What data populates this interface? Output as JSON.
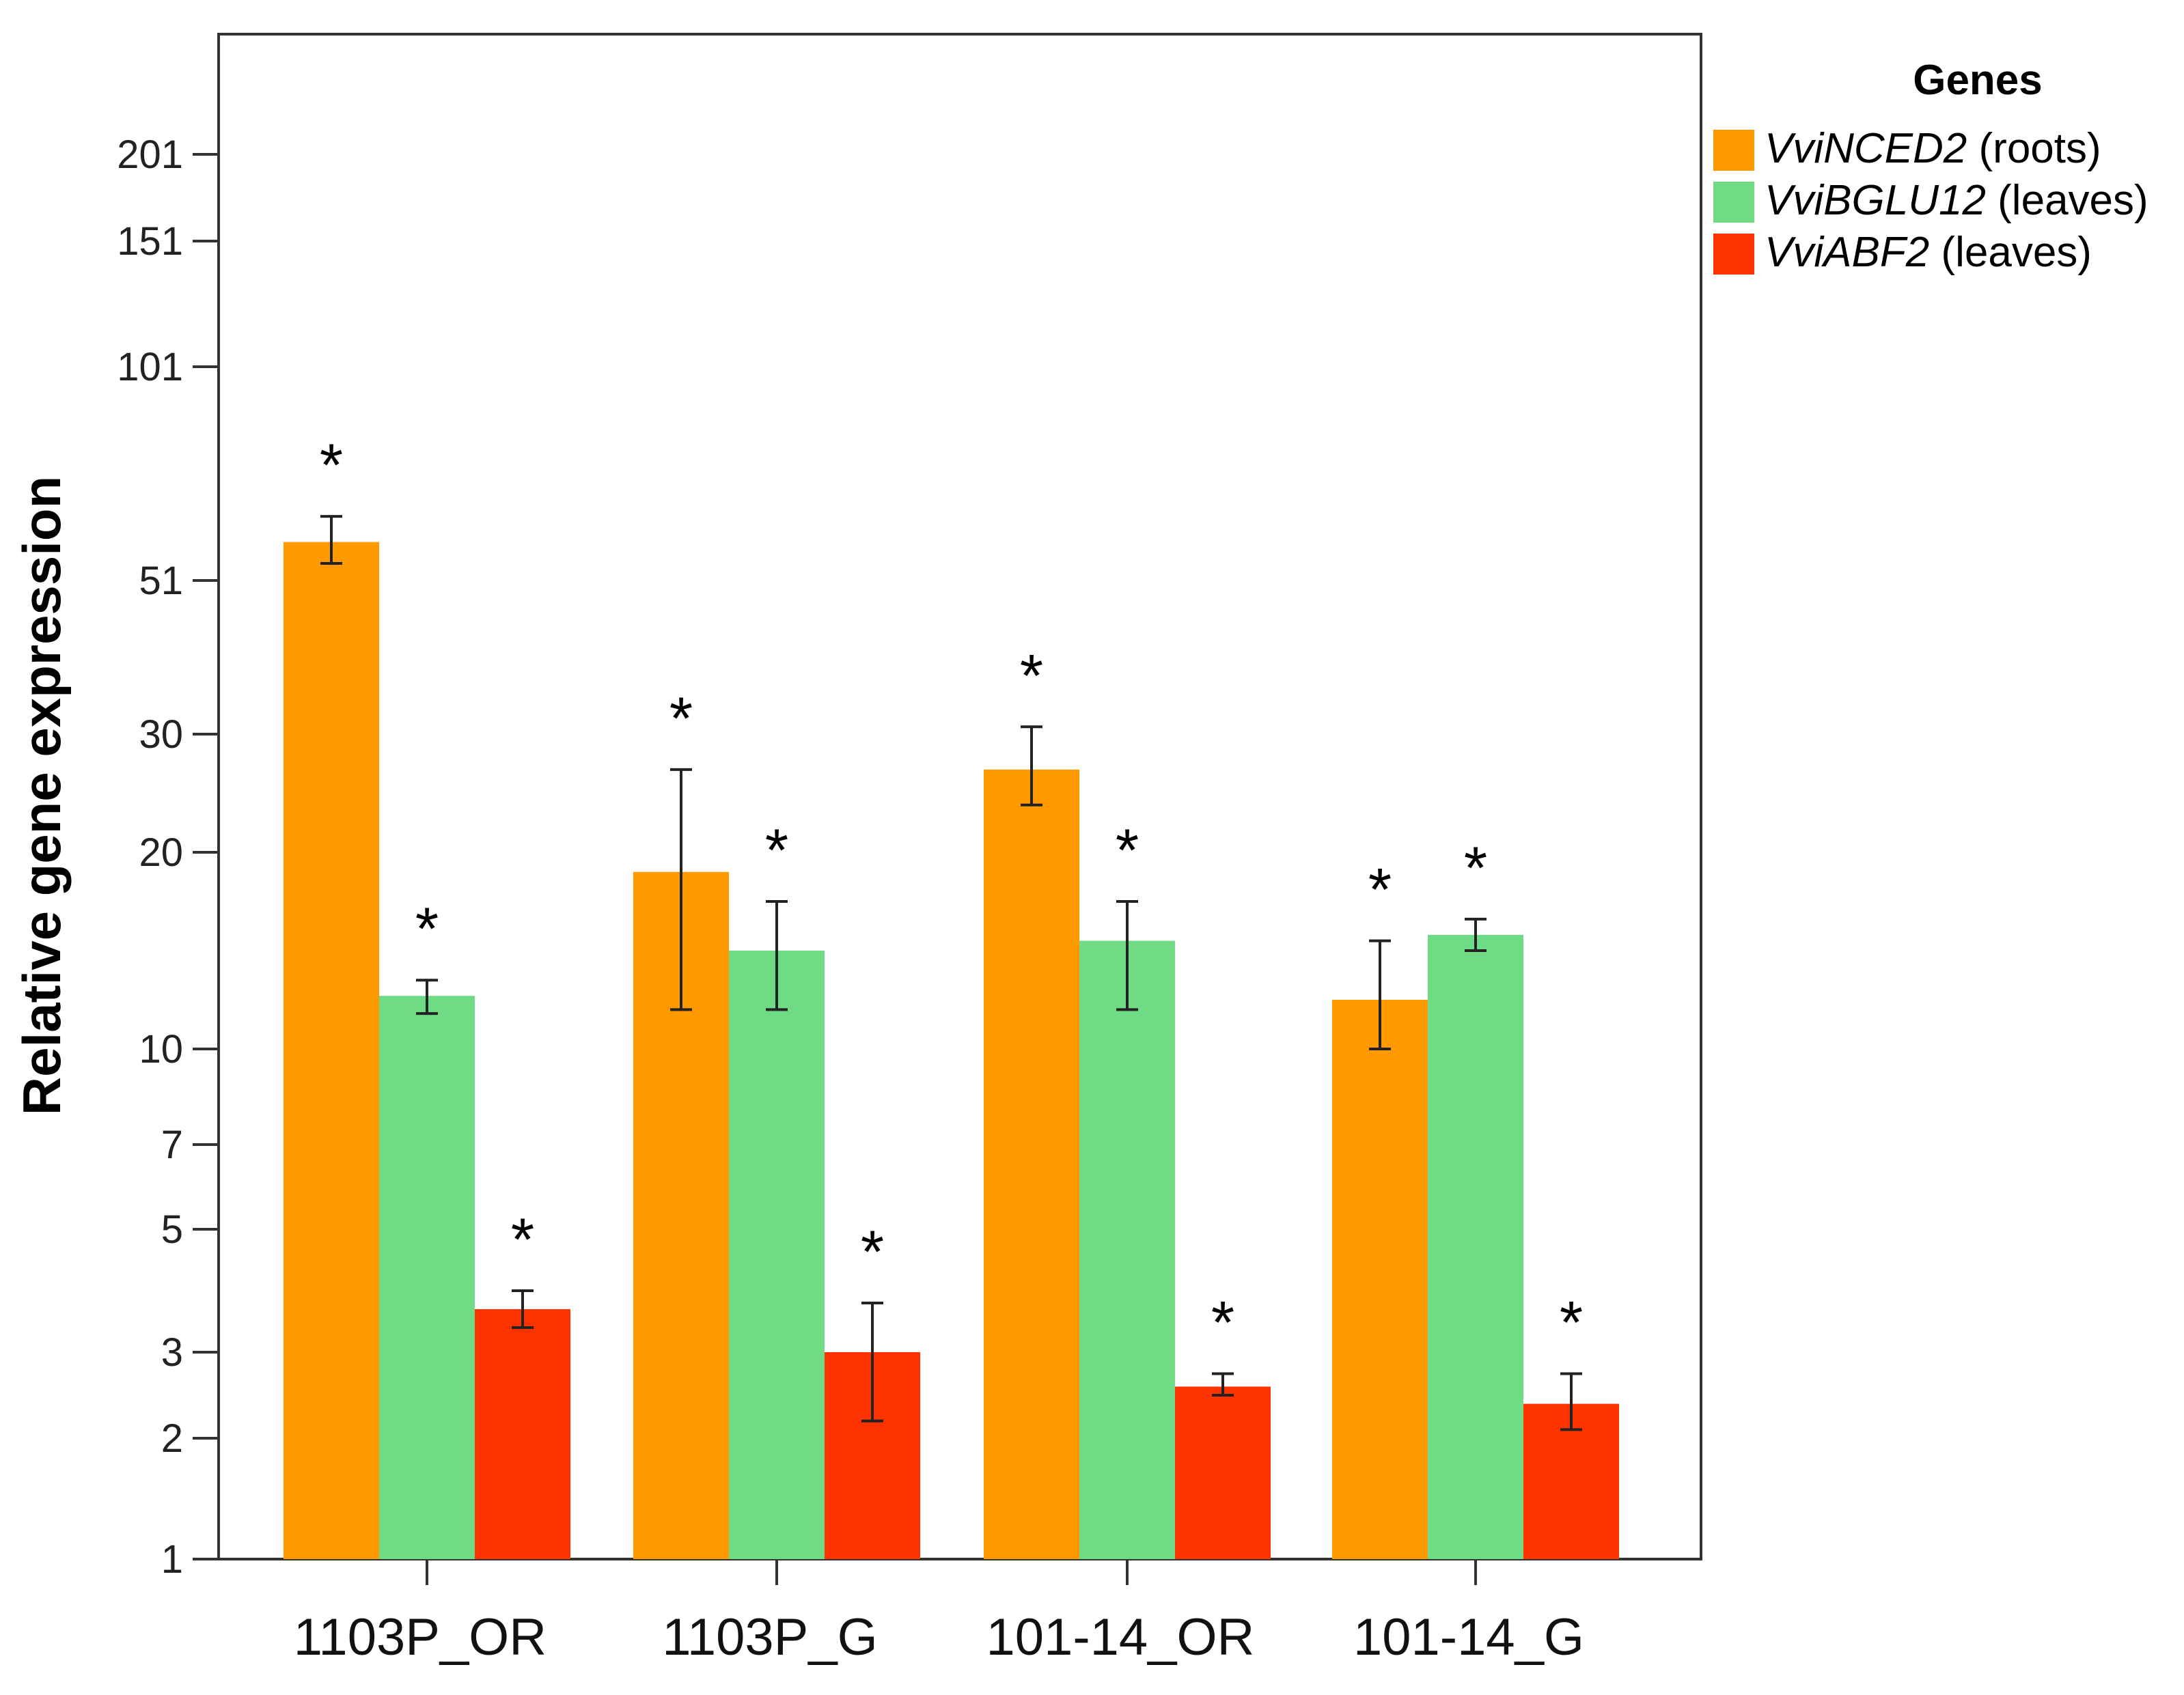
{
  "chart_data": {
    "type": "bar",
    "title": "",
    "xlabel": "",
    "ylabel": "Relative gene expression",
    "yscale": "log-like",
    "ylim": [
      1,
      240
    ],
    "yticks": [
      1,
      2,
      3,
      5,
      7,
      10,
      20,
      30,
      51,
      101,
      151,
      201
    ],
    "categories": [
      "1103P_OR",
      "1103P_G",
      "101-14_OR",
      "101-14_G"
    ],
    "legend_title": "Genes",
    "legend_position": "top-right",
    "series": [
      {
        "name": "VviNCED2 (roots)",
        "gene": "VviNCED2",
        "tissue": "(roots)",
        "color": "#FF9900",
        "values": [
          60,
          19,
          27,
          12.5
        ],
        "err_low": [
          55,
          12,
          24,
          10
        ],
        "err_high": [
          66,
          27,
          31,
          15.5
        ],
        "significance": [
          "*",
          "*",
          "*",
          "*"
        ]
      },
      {
        "name": "VviBGLU12 (leaves)",
        "gene": "VviBGLU12",
        "tissue": "(leaves)",
        "color": "#6FDC85",
        "values": [
          12.7,
          15,
          15.5,
          15.8
        ],
        "err_low": [
          11.8,
          12,
          12,
          15.0
        ],
        "err_high": [
          13.5,
          17.5,
          17.5,
          16.6
        ],
        "significance": [
          "*",
          "*",
          "*",
          "*"
        ]
      },
      {
        "name": "VviABF2 (leaves)",
        "gene": "VviABF2",
        "tissue": "(leaves)",
        "color": "#FF3300",
        "values": [
          3.7,
          3.0,
          2.6,
          2.4
        ],
        "err_low": [
          3.4,
          2.2,
          2.5,
          2.1
        ],
        "err_high": [
          4.0,
          3.8,
          2.75,
          2.75
        ],
        "significance": [
          "*",
          "*",
          "*",
          "*"
        ]
      }
    ]
  }
}
